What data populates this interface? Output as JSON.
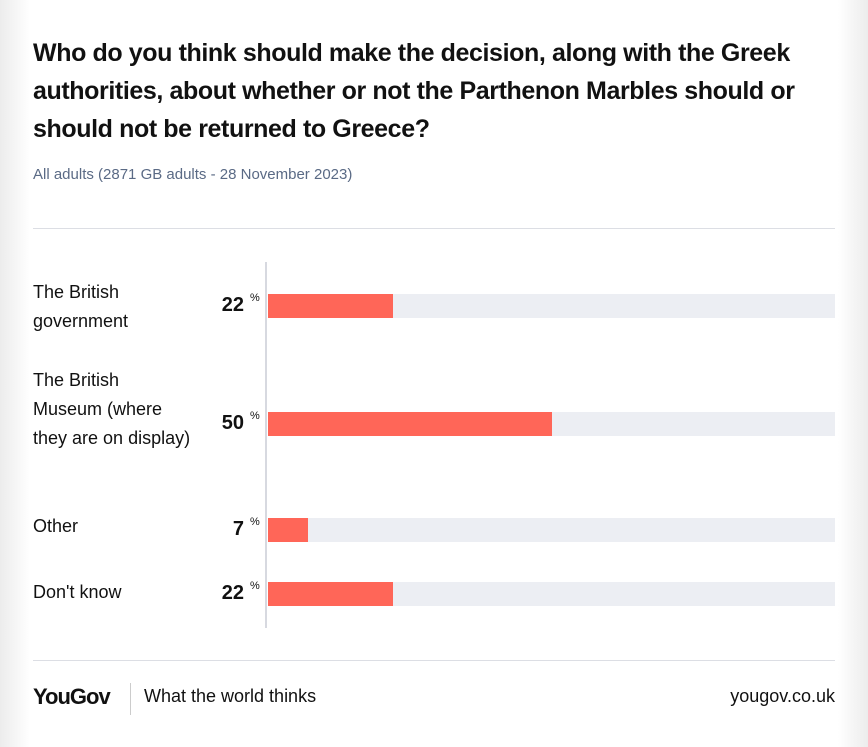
{
  "chart_data": {
    "type": "bar",
    "orientation": "horizontal",
    "title": "Who do you think should make the decision, along with the Greek authorities, about whether or not the Parthenon Marbles should or should not be returned to Greece?",
    "subtitle": "All adults (2871 GB adults - 28 November 2023)",
    "categories": [
      "The British government",
      "The British Museum (where they are on display)",
      "Other",
      "Don't know"
    ],
    "values": [
      22,
      50,
      7,
      22
    ],
    "unit": "%",
    "xlim": [
      0,
      100
    ],
    "colors": {
      "fill": "#ff6658",
      "track": "#eceef3"
    }
  },
  "footer": {
    "logo": "YouGov",
    "tagline": "What the world thinks",
    "site": "yougov.co.uk"
  }
}
